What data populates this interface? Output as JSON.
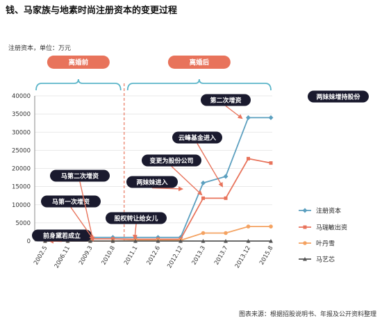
{
  "title": "钱、马家族与地素时尚注册资本的变更过程",
  "unit_label": "注册资本，单位：万元",
  "source": "图表来源：根据招股说明书、年报及公开资料整理",
  "colors": {
    "注册资本": "#5b9fbf",
    "马瑞敏出资": "#e8735b",
    "叶丹雪": "#f4a261",
    "马艺芯": "#555555",
    "period_pill": "#e8735b",
    "annotation_bg": "#1a1a2e",
    "divider": "#e8735b",
    "bracket": "#5bb5c9"
  },
  "periods": [
    {
      "label": "离婚前"
    },
    {
      "label": "离婚后"
    }
  ],
  "annotations": [
    {
      "label": "前身黛若成立",
      "target_index": 1
    },
    {
      "label": "马第一次增资",
      "target_index": 2
    },
    {
      "label": "马第二次增资",
      "target_index": 2
    },
    {
      "label": "股权转让给女儿",
      "target_index": 5
    },
    {
      "label": "两妹妹进入",
      "target_index": 6
    },
    {
      "label": "变更为股份公司",
      "target_index": 7
    },
    {
      "label": "云峰基金进入",
      "target_index": 8
    },
    {
      "label": "第二次增资",
      "target_index": 9
    },
    {
      "label": "两妹妹增持股份",
      "target_index": null
    }
  ],
  "chart_data": {
    "type": "line",
    "categories": [
      "2002.5",
      "2006.11",
      "2009.3",
      "2010.8",
      "2011.1",
      "2012.6",
      "2012.12",
      "2013.3",
      "2013.7",
      "2013.12",
      "2015.8"
    ],
    "ylim": [
      0,
      40000
    ],
    "yticks": [
      0,
      5000,
      10000,
      15000,
      20000,
      25000,
      30000,
      35000,
      40000
    ],
    "grid": true,
    "legend_position": "right",
    "divider_after_category": "2010.8",
    "series": [
      {
        "name": "注册资本",
        "marker": "diamond",
        "values": [
          300,
          500,
          1000,
          1000,
          1000,
          1000,
          1000,
          16000,
          17800,
          34000,
          34000
        ]
      },
      {
        "name": "马瑞敏出资",
        "marker": "square",
        "values": [
          100,
          300,
          600,
          600,
          500,
          500,
          500,
          11800,
          11800,
          22700,
          21500
        ]
      },
      {
        "name": "叶丹雪",
        "marker": "circle",
        "values": [
          0,
          0,
          0,
          0,
          200,
          200,
          200,
          2200,
          2200,
          4000,
          4000
        ]
      },
      {
        "name": "马艺芯",
        "marker": "triangle",
        "values": [
          0,
          0,
          0,
          0,
          0,
          0,
          0,
          0,
          0,
          0,
          0
        ]
      }
    ]
  }
}
